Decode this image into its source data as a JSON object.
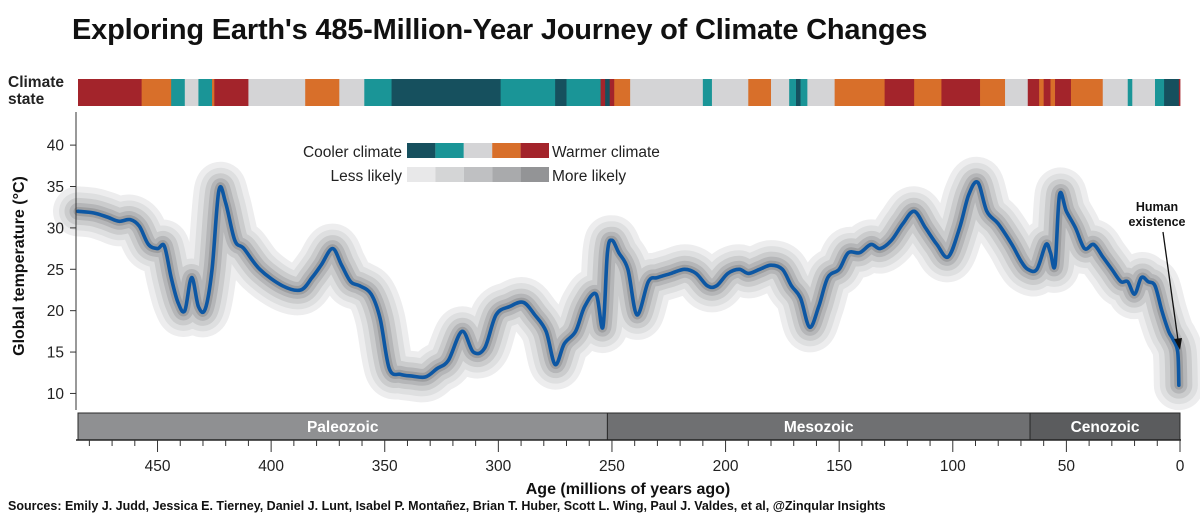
{
  "header": {
    "title": "Exploring Earth's 485-Million-Year Journey of Climate Changes",
    "sources": "Sources: Emily J. Judd, Jessica E. Tierney, Daniel J. Lunt, Isabel P. Montañez, Brian T. Huber, Scott L. Wing, Paul J. Valdes, et al, @Zinqular Insights"
  },
  "colors": {
    "temperature_line": "#0d57a3",
    "state_coolest": "#16505e",
    "state_cool": "#1a9597",
    "state_neutral": "#d4d4d6",
    "state_warm": "#d86f2a",
    "state_warmest": "#a3242b",
    "era_paleozoic": "#8f9092",
    "era_mesozoic": "#6f7072",
    "era_cenozoic": "#5b5c5e"
  },
  "chart_data": {
    "type": "line",
    "title": "Exploring Earth's 485-Million-Year Journey of Climate Changes",
    "xlabel": "Age (millions of years ago)",
    "ylabel": "Global temperature (°C)",
    "xlim": [
      485,
      0
    ],
    "ylim": [
      8,
      44
    ],
    "x_reversed": true,
    "x_ticks": [
      450,
      400,
      350,
      300,
      250,
      200,
      150,
      100,
      50,
      0
    ],
    "x_tick_labels": [
      "450",
      "400",
      "350",
      "300",
      "250",
      "200",
      "150",
      "100",
      "50",
      "0"
    ],
    "y_ticks": [
      10,
      15,
      20,
      25,
      30,
      35,
      40
    ],
    "y_tick_labels": [
      "10",
      "15",
      "20",
      "25",
      "30",
      "35",
      "40"
    ],
    "grid": false,
    "series": [
      {
        "values_x": [
          485,
          478,
          472,
          467,
          462,
          458,
          454,
          450,
          447,
          444,
          441,
          438,
          435,
          432,
          429,
          426,
          423,
          420,
          416,
          412,
          405,
          395,
          387,
          382,
          378,
          373,
          369,
          365,
          361,
          356,
          352,
          348,
          343,
          338,
          332,
          327,
          322,
          316,
          311,
          306,
          301,
          295,
          289,
          284,
          279,
          275,
          271,
          266,
          262,
          257,
          254,
          252,
          250,
          247,
          243,
          239,
          234,
          230,
          224,
          218,
          213,
          208,
          204,
          199,
          194,
          190,
          185,
          180,
          175,
          171,
          167,
          163,
          159,
          155,
          150,
          146,
          141,
          136,
          132,
          127,
          122,
          117,
          112,
          107,
          102,
          97,
          93,
          89,
          85,
          80,
          74,
          70,
          67,
          63,
          59,
          57,
          55,
          53,
          50,
          46,
          42,
          38,
          34,
          30,
          26,
          23,
          20,
          17,
          14,
          11,
          8,
          5,
          3,
          1,
          0.5
        ],
        "values_y": [
          32,
          31.8,
          31.3,
          30.8,
          31,
          30.2,
          28,
          27.5,
          27.8,
          24,
          21,
          20,
          24,
          20.5,
          20.2,
          25,
          34.5,
          33,
          28.5,
          27.5,
          25,
          23,
          22.5,
          24,
          25.5,
          27.5,
          25.5,
          23.5,
          23,
          22,
          19,
          13,
          12.3,
          12.1,
          12,
          13,
          14,
          17.5,
          15,
          15.5,
          19.5,
          20.5,
          21,
          19.5,
          17.5,
          13.5,
          16,
          17.5,
          20.5,
          22,
          18,
          27,
          28.5,
          27,
          25,
          19.5,
          23.5,
          24,
          24.5,
          25,
          24.5,
          23,
          23,
          24.5,
          25,
          24.5,
          25,
          25.5,
          25,
          23,
          21.5,
          18,
          20.5,
          24,
          25,
          27,
          27,
          28,
          27.5,
          28.5,
          30.5,
          32,
          30,
          28,
          26.5,
          30,
          34,
          35.5,
          32,
          30.5,
          28,
          26,
          25,
          25,
          28,
          27,
          25.5,
          34,
          32,
          30,
          27.5,
          28,
          26.5,
          25,
          23.5,
          23.5,
          22,
          24,
          23.5,
          23,
          20,
          17.5,
          16.5,
          15,
          11
        ]
      }
    ],
    "climate_state": {
      "label_lines": [
        "Climate",
        "state"
      ],
      "segments": [
        {
          "start": 485,
          "end": 457,
          "state": "warmest"
        },
        {
          "start": 457,
          "end": 444,
          "state": "warm"
        },
        {
          "start": 444,
          "end": 438,
          "state": "cool"
        },
        {
          "start": 438,
          "end": 432,
          "state": "neutral"
        },
        {
          "start": 432,
          "end": 426,
          "state": "cool"
        },
        {
          "start": 426,
          "end": 425,
          "state": "warm"
        },
        {
          "start": 425,
          "end": 410,
          "state": "warmest"
        },
        {
          "start": 410,
          "end": 385,
          "state": "neutral"
        },
        {
          "start": 385,
          "end": 370,
          "state": "warm"
        },
        {
          "start": 370,
          "end": 359,
          "state": "neutral"
        },
        {
          "start": 359,
          "end": 347,
          "state": "cool"
        },
        {
          "start": 347,
          "end": 299,
          "state": "coolest"
        },
        {
          "start": 299,
          "end": 275,
          "state": "cool"
        },
        {
          "start": 275,
          "end": 270,
          "state": "coolest"
        },
        {
          "start": 270,
          "end": 255,
          "state": "cool"
        },
        {
          "start": 255,
          "end": 253,
          "state": "warmest"
        },
        {
          "start": 253,
          "end": 251,
          "state": "coolest"
        },
        {
          "start": 251,
          "end": 249,
          "state": "warmest"
        },
        {
          "start": 249,
          "end": 242,
          "state": "warm"
        },
        {
          "start": 242,
          "end": 240,
          "state": "neutral"
        },
        {
          "start": 240,
          "end": 210,
          "state": "neutral"
        },
        {
          "start": 210,
          "end": 206,
          "state": "cool"
        },
        {
          "start": 206,
          "end": 190,
          "state": "neutral"
        },
        {
          "start": 190,
          "end": 180,
          "state": "warm"
        },
        {
          "start": 180,
          "end": 172,
          "state": "neutral"
        },
        {
          "start": 172,
          "end": 169,
          "state": "cool"
        },
        {
          "start": 169,
          "end": 167,
          "state": "coolest"
        },
        {
          "start": 167,
          "end": 164,
          "state": "cool"
        },
        {
          "start": 164,
          "end": 152,
          "state": "neutral"
        },
        {
          "start": 152,
          "end": 130,
          "state": "warm"
        },
        {
          "start": 130,
          "end": 117,
          "state": "warmest"
        },
        {
          "start": 117,
          "end": 105,
          "state": "warm"
        },
        {
          "start": 105,
          "end": 88,
          "state": "warmest"
        },
        {
          "start": 88,
          "end": 77,
          "state": "warm"
        },
        {
          "start": 77,
          "end": 67,
          "state": "neutral"
        },
        {
          "start": 67,
          "end": 62,
          "state": "warmest"
        },
        {
          "start": 62,
          "end": 60,
          "state": "warm"
        },
        {
          "start": 60,
          "end": 57,
          "state": "warmest"
        },
        {
          "start": 57,
          "end": 55,
          "state": "warm"
        },
        {
          "start": 55,
          "end": 48,
          "state": "warmest"
        },
        {
          "start": 48,
          "end": 34,
          "state": "warm"
        },
        {
          "start": 34,
          "end": 23,
          "state": "neutral"
        },
        {
          "start": 23,
          "end": 21,
          "state": "cool"
        },
        {
          "start": 21,
          "end": 11,
          "state": "neutral"
        },
        {
          "start": 11,
          "end": 7,
          "state": "cool"
        },
        {
          "start": 7,
          "end": 0.5,
          "state": "coolest"
        },
        {
          "start": 0.5,
          "end": 0,
          "state": "warmest"
        }
      ]
    },
    "legend": {
      "placement": "top-center",
      "cooler_label": "Cooler climate",
      "warmer_label": "Warmer climate",
      "less_label": "Less likely",
      "more_label": "More likely"
    },
    "eras": [
      {
        "name": "Paleozoic",
        "start": 485,
        "end": 252
      },
      {
        "name": "Mesozoic",
        "start": 252,
        "end": 66
      },
      {
        "name": "Cenozoic",
        "start": 66,
        "end": 0
      }
    ],
    "annotation": {
      "lines": [
        "Human",
        "existence"
      ],
      "x": 0.5,
      "y": 13
    }
  }
}
